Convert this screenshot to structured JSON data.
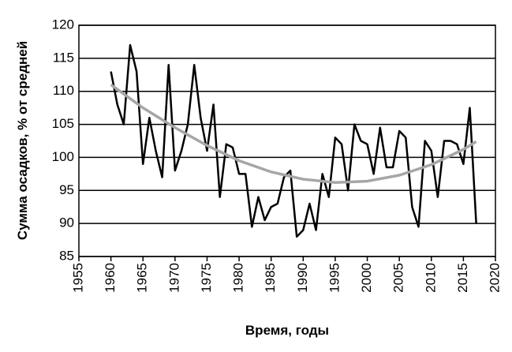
{
  "chart_data": {
    "type": "line",
    "x_label": "Время, годы",
    "y_label": "Сумма осадков, % от средней",
    "x": [
      1960,
      1961,
      1962,
      1963,
      1964,
      1965,
      1966,
      1967,
      1968,
      1969,
      1970,
      1971,
      1972,
      1973,
      1974,
      1975,
      1976,
      1977,
      1978,
      1979,
      1980,
      1981,
      1982,
      1983,
      1984,
      1985,
      1986,
      1987,
      1988,
      1989,
      1990,
      1991,
      1992,
      1993,
      1994,
      1995,
      1996,
      1997,
      1998,
      1999,
      2000,
      2001,
      2002,
      2003,
      2004,
      2005,
      2006,
      2007,
      2008,
      2009,
      2010,
      2011,
      2012,
      2013,
      2014,
      2015,
      2016,
      2017
    ],
    "series": [
      {
        "color": "#000000",
        "values": [
          113,
          108,
          105,
          117,
          113,
          99,
          106,
          101,
          97,
          114,
          98,
          101,
          105,
          114,
          106,
          101,
          108,
          94,
          102,
          101.5,
          97.5,
          97.5,
          89.5,
          94,
          90.5,
          92.5,
          93,
          97,
          98,
          88,
          89,
          93,
          89,
          97.5,
          94,
          103,
          102,
          95,
          105,
          102.5,
          102,
          97.5,
          104.5,
          98.5,
          98.5,
          104,
          103,
          92.5,
          89.5,
          102.5,
          101,
          94,
          102.5,
          102.5,
          102,
          99,
          107.5,
          90
        ]
      },
      {
        "color": "#a6a6a6",
        "x": [
          1960,
          1965,
          1970,
          1975,
          1980,
          1985,
          1990,
          1995,
          2000,
          2005,
          2010,
          2015,
          2017
        ],
        "values": [
          111,
          107.5,
          104.5,
          101.8,
          99.5,
          97.8,
          96.7,
          96.2,
          96.4,
          97.3,
          98.9,
          101.2,
          102.4
        ]
      }
    ],
    "xlim": [
      1955,
      2020
    ],
    "xticks": [
      1955,
      1960,
      1965,
      1970,
      1975,
      1980,
      1985,
      1990,
      1995,
      2000,
      2005,
      2010,
      2015,
      2020
    ],
    "ylim": [
      85,
      120
    ],
    "yticks": [
      85,
      90,
      95,
      100,
      105,
      110,
      115,
      120
    ],
    "grid": true
  }
}
